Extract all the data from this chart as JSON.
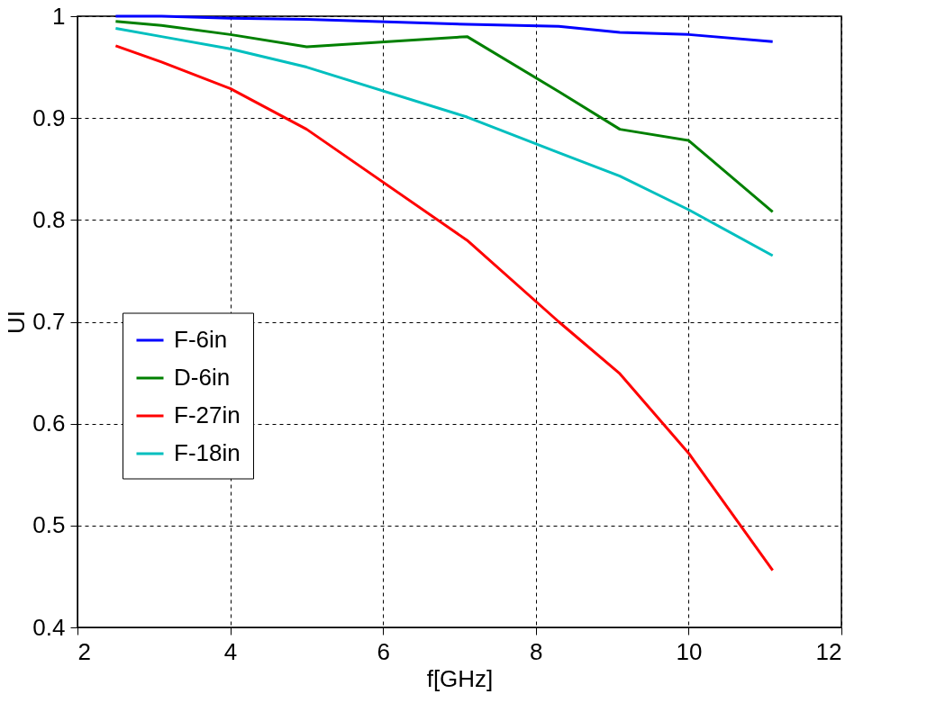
{
  "chart_data": {
    "type": "line",
    "xlabel": "f[GHz]",
    "ylabel": "UI",
    "x": [
      2.5,
      3.1,
      4,
      5,
      7.1,
      8.3,
      9.1,
      10,
      11.1
    ],
    "series": [
      {
        "name": "F-6in",
        "color": "#0000ff",
        "values": [
          1.0,
          1.0,
          0.998,
          0.997,
          0.992,
          0.99,
          0.984,
          0.982,
          0.975
        ]
      },
      {
        "name": "D-6in",
        "color": "#008000",
        "values": [
          0.995,
          0.991,
          0.982,
          0.97,
          0.98,
          0.926,
          0.889,
          0.878,
          0.808
        ]
      },
      {
        "name": "F-27in",
        "color": "#ff0000",
        "values": [
          0.971,
          0.955,
          0.929,
          0.889,
          0.78,
          0.7,
          0.649,
          0.571,
          0.456
        ]
      },
      {
        "name": "F-18in",
        "color": "#00bfbf",
        "values": [
          0.988,
          0.98,
          0.968,
          0.95,
          0.901,
          0.866,
          0.843,
          0.81,
          0.765
        ]
      }
    ],
    "xlim": [
      2,
      12
    ],
    "xticks": [
      2,
      4,
      6,
      8,
      10,
      12
    ],
    "ylim": [
      0.4,
      1
    ],
    "yticks": [
      0.4,
      0.5,
      0.6,
      0.7,
      0.8,
      0.9,
      1
    ],
    "grid": true,
    "legend": "center left",
    "marker": "none",
    "line_style": "solid"
  }
}
